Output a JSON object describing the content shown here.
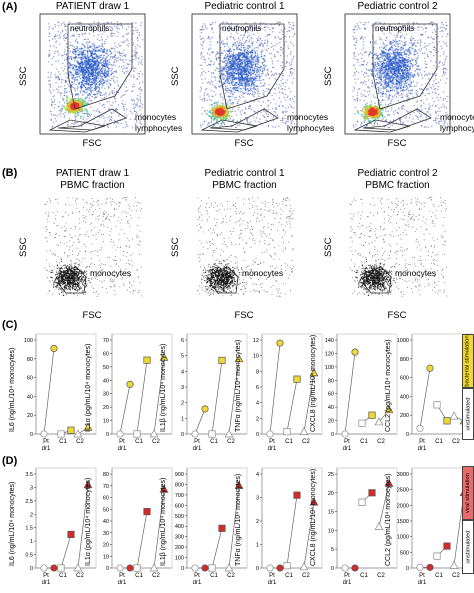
{
  "panels": {
    "A": {
      "letter": "(A)",
      "titles": [
        "PATIENT draw 1",
        "Pediatric control 1",
        "Pediatric control 2"
      ],
      "ylabel": "SSC",
      "xlabel": "FSC",
      "gates": [
        "neutrophils",
        "monocytes",
        "lymphocytes"
      ]
    },
    "B": {
      "letter": "(B)",
      "subtitle": "PBMC fraction",
      "gate": "monocytes"
    },
    "C": {
      "letter": "(C)",
      "side_label": "bacterial stimulation"
    },
    "D": {
      "letter": "(D)",
      "side_label": "viral stimulation"
    },
    "unstim_label": "unstimulated",
    "x_categories": [
      "Pt\ndr1",
      "C1",
      "C2"
    ]
  },
  "colors": {
    "bacterial": "#f0d832",
    "viral": "#d42a2a",
    "unstim_border": "#888888"
  },
  "chart_data": [
    {
      "type": "scatter",
      "panel": "C",
      "ylabel": "IL6 (ng/mL/10⁴ monocytes)",
      "ylim": [
        0,
        100
      ],
      "yticks": [
        0,
        20,
        40,
        60,
        80,
        100
      ],
      "categories": [
        "Pt dr1",
        "C1",
        "C2"
      ],
      "series": [
        {
          "name": "unstimulated",
          "values": [
            0,
            0,
            0
          ]
        },
        {
          "name": "bacterial stimulation",
          "values": [
            91,
            4,
            7
          ]
        }
      ]
    },
    {
      "type": "scatter",
      "panel": "C",
      "ylabel": "IL1α (pg/mL/10⁴ monocytes)",
      "ylim": [
        0,
        70
      ],
      "yticks": [
        0,
        10,
        20,
        30,
        40,
        50,
        60,
        70
      ],
      "categories": [
        "Pt dr1",
        "C1",
        "C2"
      ],
      "series": [
        {
          "name": "unstimulated",
          "values": [
            0,
            0,
            0
          ]
        },
        {
          "name": "bacterial stimulation",
          "values": [
            37,
            55,
            57
          ]
        }
      ]
    },
    {
      "type": "scatter",
      "panel": "C",
      "ylabel": "IL1β (ng/mL/10⁴ monocytes)",
      "ylim": [
        0,
        6
      ],
      "yticks": [
        0,
        1,
        2,
        3,
        4,
        5,
        6
      ],
      "categories": [
        "Pt dr1",
        "C1",
        "C2"
      ],
      "series": [
        {
          "name": "unstimulated",
          "values": [
            0,
            0,
            0
          ]
        },
        {
          "name": "bacterial stimulation",
          "values": [
            1.6,
            4.7,
            4.8
          ]
        }
      ]
    },
    {
      "type": "scatter",
      "panel": "C",
      "ylabel": "TNFα (ng/mL/10⁴ monocytes)",
      "ylim": [
        0,
        12
      ],
      "yticks": [
        0,
        2,
        4,
        6,
        8,
        10,
        12
      ],
      "categories": [
        "Pt dr1",
        "C1",
        "C2"
      ],
      "series": [
        {
          "name": "unstimulated",
          "values": [
            0,
            0.3,
            0.3
          ]
        },
        {
          "name": "bacterial stimulation",
          "values": [
            11.6,
            7,
            7.8
          ]
        }
      ]
    },
    {
      "type": "scatter",
      "panel": "C",
      "ylabel": "CXCL8 (ng/mL/10⁴ monocytes)",
      "ylim": [
        0,
        140
      ],
      "yticks": [
        0,
        20,
        40,
        60,
        80,
        100,
        120,
        140
      ],
      "categories": [
        "Pt dr1",
        "C1",
        "C2"
      ],
      "series": [
        {
          "name": "unstimulated",
          "values": [
            0,
            16,
            18
          ]
        },
        {
          "name": "bacterial stimulation",
          "values": [
            122,
            28,
            36
          ]
        }
      ]
    },
    {
      "type": "scatter",
      "panel": "C",
      "ylabel": "CCL2 (pg/mL/10⁴ monocytes)",
      "ylim": [
        0,
        1000
      ],
      "yticks": [
        0,
        200,
        400,
        600,
        800,
        1000
      ],
      "categories": [
        "Pt dr1",
        "C1",
        "C2"
      ],
      "series": [
        {
          "name": "unstimulated",
          "values": [
            60,
            310,
            190
          ]
        },
        {
          "name": "bacterial stimulation",
          "values": [
            700,
            140,
            140
          ]
        }
      ]
    },
    {
      "type": "scatter",
      "panel": "D",
      "ylabel": "IL6 (ng/mL/10⁴ monocytes)",
      "ylim": [
        0,
        3.5
      ],
      "yticks": [
        0,
        0.5,
        1,
        1.5,
        2,
        2.5,
        3,
        3.5
      ],
      "categories": [
        "Pt dr1",
        "C1",
        "C2"
      ],
      "series": [
        {
          "name": "unstimulated",
          "values": [
            0,
            0,
            0
          ]
        },
        {
          "name": "viral stimulation",
          "values": [
            0,
            1.25,
            3.1
          ]
        }
      ]
    },
    {
      "type": "scatter",
      "panel": "D",
      "ylabel": "IL1α (pg/mL/10⁴ monocytes)",
      "ylim": [
        0,
        80
      ],
      "yticks": [
        0,
        10,
        20,
        30,
        40,
        50,
        60,
        70,
        80
      ],
      "categories": [
        "Pt dr1",
        "C1",
        "C2"
      ],
      "series": [
        {
          "name": "unstimulated",
          "values": [
            0,
            0,
            0
          ]
        },
        {
          "name": "viral stimulation",
          "values": [
            0,
            48,
            67
          ]
        }
      ]
    },
    {
      "type": "scatter",
      "panel": "D",
      "ylabel": "IL1β (ng/mL/10⁴ monocytes)",
      "ylim": [
        0,
        900
      ],
      "yticks": [
        0,
        100,
        200,
        300,
        400,
        500,
        600,
        700,
        800,
        900
      ],
      "categories": [
        "Pt dr1",
        "C1",
        "C2"
      ],
      "series": [
        {
          "name": "unstimulated",
          "values": [
            0,
            0,
            0
          ]
        },
        {
          "name": "viral stimulation",
          "values": [
            0,
            380,
            790
          ]
        }
      ]
    },
    {
      "type": "scatter",
      "panel": "D",
      "ylabel": "TNFα (ng/mL/10⁴ monocytes)",
      "ylim": [
        0,
        4
      ],
      "yticks": [
        0,
        1,
        2,
        3,
        4
      ],
      "categories": [
        "Pt dr1",
        "C1",
        "C2"
      ],
      "series": [
        {
          "name": "unstimulated",
          "values": [
            0,
            0.1,
            0.05
          ]
        },
        {
          "name": "viral stimulation",
          "values": [
            0,
            3.1,
            2.8
          ]
        }
      ]
    },
    {
      "type": "scatter",
      "panel": "D",
      "ylabel": "CXCL8 (ng/mL/10⁴ monocytes)",
      "ylim": [
        0,
        25
      ],
      "yticks": [
        0,
        5,
        10,
        15,
        20,
        25
      ],
      "categories": [
        "Pt dr1",
        "C1",
        "C2"
      ],
      "series": [
        {
          "name": "unstimulated",
          "values": [
            0,
            17.5,
            11
          ]
        },
        {
          "name": "viral stimulation",
          "values": [
            0,
            20,
            22.5
          ]
        }
      ]
    },
    {
      "type": "scatter",
      "panel": "D",
      "ylabel": "CCL2 (pg/mL/10⁴ monocytes)",
      "ylim": [
        0,
        3000
      ],
      "yticks": [
        0,
        500,
        1000,
        1500,
        2000,
        2500,
        3000
      ],
      "categories": [
        "Pt dr1",
        "C1",
        "C2"
      ],
      "series": [
        {
          "name": "unstimulated",
          "values": [
            20,
            380,
            80
          ]
        },
        {
          "name": "viral stimulation",
          "values": [
            20,
            700,
            2400
          ]
        }
      ]
    }
  ]
}
